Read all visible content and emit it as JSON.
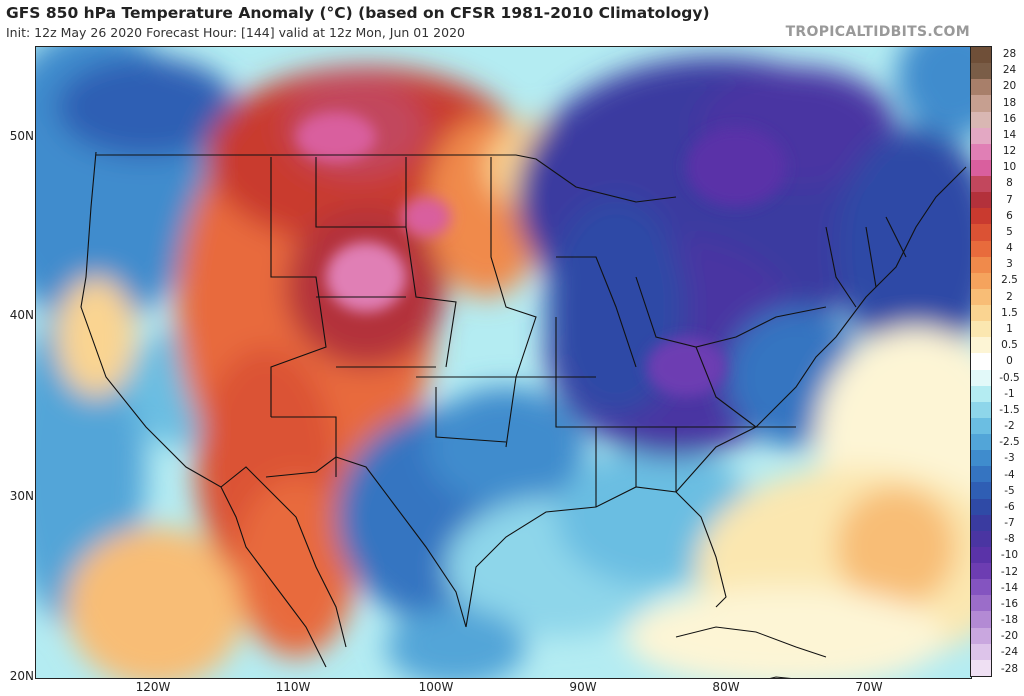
{
  "header": {
    "title": "GFS 850 hPa Temperature Anomaly (°C) (based on CFSR 1981-2010 Climatology)",
    "subtitle": "Init: 12z May 26 2020   Forecast Hour: [144]   valid at 12z Mon, Jun 01 2020",
    "brand": "TROPICALTIDBITS.COM"
  },
  "axes": {
    "lat_labels": [
      "50N",
      "40N",
      "30N",
      "20N"
    ],
    "lon_labels": [
      "120W",
      "110W",
      "100W",
      "90W",
      "80W",
      "70W"
    ]
  },
  "colorbar": {
    "levels": [
      "28",
      "24",
      "20",
      "18",
      "16",
      "14",
      "12",
      "10",
      "8",
      "7",
      "6",
      "5",
      "4",
      "3",
      "2.5",
      "2",
      "1.5",
      "1",
      "0.5",
      "0",
      "-0.5",
      "-1",
      "-1.5",
      "-2",
      "-2.5",
      "-3",
      "-4",
      "-5",
      "-6",
      "-7",
      "-8",
      "-10",
      "-12",
      "-14",
      "-16",
      "-18",
      "-20",
      "-24",
      "-28"
    ],
    "colors": [
      "#7a5d47",
      "#a87f6a",
      "#c69f90",
      "#d9b7b3",
      "#e3a8c3",
      "#e07fb5",
      "#d95f9e",
      "#c2475d",
      "#b3313b",
      "#c93a2f",
      "#db5234",
      "#e86b3c",
      "#f08a4b",
      "#f5a35d",
      "#f8bd76",
      "#fad491",
      "#fbe7b0",
      "#fdf5d5",
      "#ffffff",
      "#e2f9f9",
      "#b4ecf2",
      "#8ed6ea",
      "#6bbee2",
      "#52a5d8",
      "#3f8ccd",
      "#3574c1",
      "#2f5eb4",
      "#2f4aa6",
      "#3a3ba0",
      "#4a35a2",
      "#5a33a8",
      "#6d3db2",
      "#8454c0",
      "#9b6dc9",
      "#b38ad4",
      "#c9a7df",
      "#ddc4ea",
      "#efe0f3"
    ],
    "top_color": "#6f4f38"
  }
}
